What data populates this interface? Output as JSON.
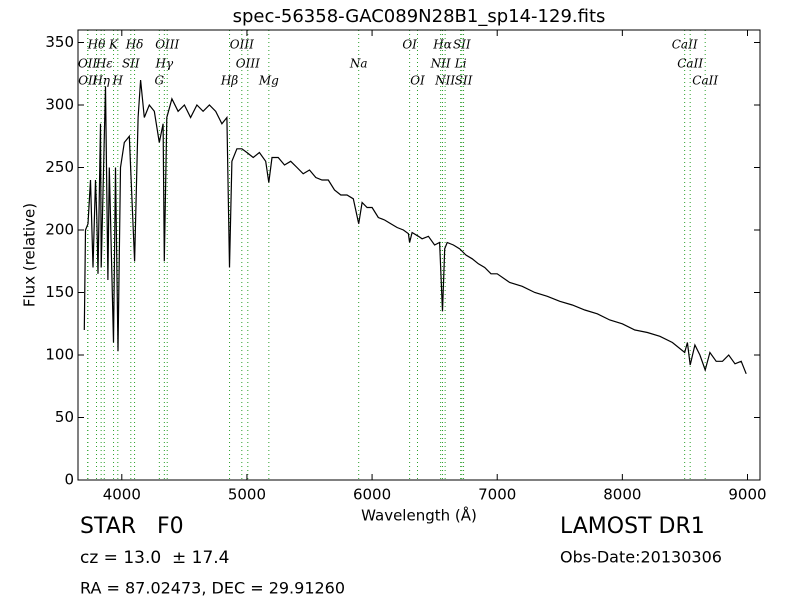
{
  "chart_data": {
    "type": "line",
    "title": "spec-56358-GAC089N28B1_sp14-129.fits",
    "xlabel": "Wavelength (Å)",
    "ylabel": "Flux (relative)",
    "xlim": [
      3650,
      9100
    ],
    "ylim": [
      0,
      360
    ],
    "xticks": [
      4000,
      5000,
      6000,
      7000,
      8000,
      9000
    ],
    "yticks": [
      0,
      50,
      100,
      150,
      200,
      250,
      300,
      350
    ],
    "color": "#000000",
    "line_color": "#2ca02c",
    "x": [
      3700,
      3710,
      3730,
      3750,
      3770,
      3790,
      3800,
      3810,
      3830,
      3835,
      3850,
      3870,
      3889,
      3900,
      3934,
      3950,
      3970,
      3990,
      4020,
      4060,
      4102,
      4130,
      4150,
      4180,
      4220,
      4260,
      4300,
      4330,
      4340,
      4360,
      4400,
      4450,
      4500,
      4550,
      4600,
      4650,
      4700,
      4750,
      4800,
      4840,
      4861,
      4880,
      4920,
      4960,
      5000,
      5050,
      5100,
      5150,
      5175,
      5200,
      5250,
      5300,
      5350,
      5400,
      5450,
      5500,
      5550,
      5600,
      5650,
      5700,
      5750,
      5800,
      5850,
      5893,
      5920,
      5960,
      6000,
      6050,
      6100,
      6150,
      6200,
      6250,
      6290,
      6300,
      6320,
      6370,
      6400,
      6450,
      6500,
      6540,
      6563,
      6580,
      6600,
      6650,
      6700,
      6750,
      6800,
      6850,
      6900,
      6950,
      7000,
      7100,
      7200,
      7300,
      7400,
      7500,
      7600,
      7700,
      7800,
      7900,
      8000,
      8100,
      8200,
      8300,
      8400,
      8498,
      8520,
      8542,
      8580,
      8620,
      8662,
      8700,
      8750,
      8800,
      8850,
      8900,
      8950,
      8990
    ],
    "values": [
      120,
      200,
      205,
      240,
      170,
      240,
      210,
      165,
      285,
      170,
      230,
      315,
      160,
      250,
      110,
      250,
      103,
      250,
      270,
      275,
      175,
      290,
      320,
      290,
      300,
      295,
      270,
      285,
      175,
      290,
      305,
      295,
      300,
      290,
      300,
      295,
      300,
      295,
      285,
      290,
      170,
      255,
      265,
      265,
      262,
      258,
      262,
      255,
      238,
      258,
      258,
      252,
      255,
      250,
      245,
      248,
      242,
      240,
      240,
      232,
      228,
      228,
      225,
      205,
      222,
      218,
      218,
      210,
      208,
      205,
      202,
      200,
      197,
      190,
      198,
      195,
      193,
      195,
      188,
      190,
      135,
      185,
      190,
      188,
      185,
      180,
      177,
      173,
      170,
      165,
      165,
      158,
      155,
      150,
      147,
      143,
      140,
      136,
      133,
      128,
      125,
      120,
      118,
      115,
      110,
      102,
      110,
      92,
      108,
      100,
      88,
      102,
      95,
      95,
      100,
      93,
      95,
      85
    ],
    "lines": [
      {
        "label": "Hθ",
        "wavelength": 3798
      },
      {
        "label": "K",
        "wavelength": 3934
      },
      {
        "label": "Hδ",
        "wavelength": 4102
      },
      {
        "label": "OIII",
        "wavelength": 4363
      },
      {
        "label": "OIII",
        "wavelength": 4959
      },
      {
        "label": "OI",
        "wavelength": 6300
      },
      {
        "label": "Hα",
        "wavelength": 6563
      },
      {
        "label": "SII",
        "wavelength": 6717
      },
      {
        "label": "CaII",
        "wavelength": 8498
      },
      {
        "label": "OII",
        "wavelength": 3727
      },
      {
        "label": "Hε",
        "wavelength": 3860
      },
      {
        "label": "SII",
        "wavelength": 4072
      },
      {
        "label": "Hγ",
        "wavelength": 4340
      },
      {
        "label": "OIII",
        "wavelength": 5007
      },
      {
        "label": "Na",
        "wavelength": 5893
      },
      {
        "label": "NII",
        "wavelength": 6548
      },
      {
        "label": "Li",
        "wavelength": 6708
      },
      {
        "label": "CaII",
        "wavelength": 8542
      },
      {
        "label": "OII",
        "wavelength": 3729
      },
      {
        "label": "Hη",
        "wavelength": 3835
      },
      {
        "label": "H",
        "wavelength": 3968
      },
      {
        "label": "G",
        "wavelength": 4300
      },
      {
        "label": "Hβ",
        "wavelength": 4861
      },
      {
        "label": "Mg",
        "wavelength": 5175
      },
      {
        "label": "OI",
        "wavelength": 6363
      },
      {
        "label": "NII",
        "wavelength": 6584
      },
      {
        "label": "SII",
        "wavelength": 6731
      },
      {
        "label": "CaII",
        "wavelength": 8662
      }
    ],
    "footer": {
      "object": "STAR   F0",
      "survey": "LAMOST DR1",
      "cz": "cz = 13.0  ± 17.4",
      "date": "Obs-Date:20130306",
      "coords": "RA = 87.02473, DEC = 29.91260"
    }
  }
}
